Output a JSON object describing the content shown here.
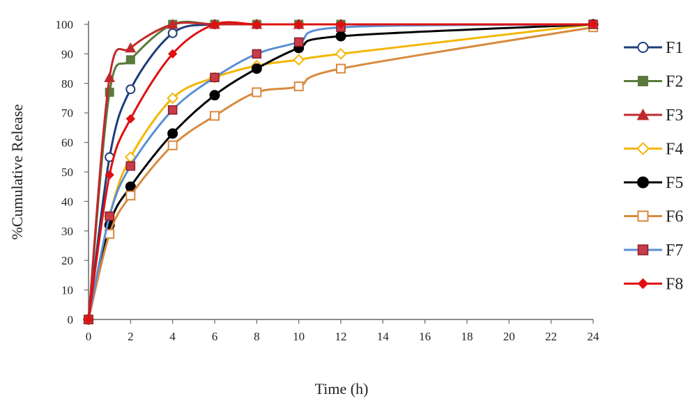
{
  "chart_data": {
    "type": "line",
    "title": "",
    "xlabel": "Time (h)",
    "ylabel": "%Cumulative Release",
    "x_ticks": [
      0,
      2,
      4,
      6,
      8,
      10,
      12,
      14,
      16,
      18,
      20,
      22,
      24
    ],
    "y_ticks": [
      0,
      10,
      20,
      30,
      40,
      50,
      60,
      70,
      80,
      90,
      100
    ],
    "xlim": [
      0,
      24
    ],
    "ylim": [
      0,
      100
    ],
    "grid": false,
    "legend_position": "right",
    "x": [
      0,
      1,
      2,
      4,
      6,
      8,
      10,
      12,
      24
    ],
    "series": [
      {
        "name": "F1",
        "color": "#1f3d7a",
        "marker": "circle-open",
        "values": [
          0,
          55,
          78,
          97,
          100,
          100,
          100,
          100,
          100
        ]
      },
      {
        "name": "F2",
        "color": "#5a7a3a",
        "marker": "square-filled",
        "values": [
          0,
          77,
          88,
          100,
          100,
          100,
          100,
          100,
          100
        ]
      },
      {
        "name": "F3",
        "color": "#c0282d",
        "marker": "triangle-filled",
        "values": [
          0,
          82,
          92,
          100,
          100,
          100,
          100,
          100,
          100
        ]
      },
      {
        "name": "F4",
        "color": "#f2b705",
        "marker": "diamond-open",
        "values": [
          0,
          35,
          55,
          75,
          82,
          86,
          88,
          90,
          100
        ]
      },
      {
        "name": "F5",
        "color": "#000000",
        "marker": "circle-filled",
        "values": [
          0,
          32,
          45,
          63,
          76,
          85,
          92,
          96,
          100
        ]
      },
      {
        "name": "F6",
        "color": "#d98a3d",
        "marker": "square-open",
        "values": [
          0,
          29,
          42,
          59,
          69,
          77,
          79,
          85,
          99
        ]
      },
      {
        "name": "F7",
        "color": "#5b8fd6",
        "marker": "square-red",
        "values": [
          0,
          35,
          52,
          71,
          82,
          90,
          94,
          99,
          100
        ]
      },
      {
        "name": "F8",
        "color": "#e01010",
        "marker": "diamond-filled",
        "values": [
          0,
          49,
          68,
          90,
          100,
          100,
          100,
          100,
          100
        ]
      }
    ]
  }
}
